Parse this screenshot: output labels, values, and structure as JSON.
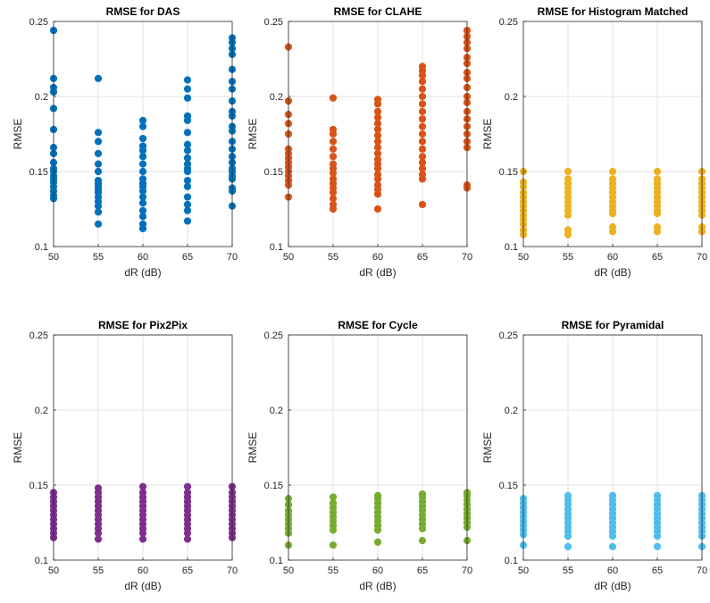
{
  "chart_data": [
    {
      "type": "scatter",
      "title": "RMSE for DAS",
      "xlabel": "dR (dB)",
      "ylabel": "RMSE",
      "xlim": [
        50,
        70
      ],
      "ylim": [
        0.1,
        0.25
      ],
      "xticks": [
        "50",
        "55",
        "60",
        "65",
        "70"
      ],
      "yticks": [
        "0.1",
        "0.15",
        "0.2",
        "0.25"
      ],
      "grid": true,
      "color": "#0072BD",
      "series": [
        {
          "x": 50,
          "y": [
            0.244,
            0.212,
            0.206,
            0.203,
            0.192,
            0.178,
            0.166,
            0.162,
            0.156,
            0.152,
            0.15,
            0.147,
            0.145,
            0.143,
            0.14,
            0.137,
            0.134,
            0.132
          ]
        },
        {
          "x": 55,
          "y": [
            0.212,
            0.176,
            0.17,
            0.162,
            0.155,
            0.15,
            0.144,
            0.142,
            0.14,
            0.138,
            0.136,
            0.133,
            0.13,
            0.127,
            0.123,
            0.115
          ]
        },
        {
          "x": 60,
          "y": [
            0.184,
            0.18,
            0.172,
            0.167,
            0.164,
            0.16,
            0.155,
            0.15,
            0.145,
            0.142,
            0.14,
            0.137,
            0.133,
            0.129,
            0.124,
            0.12,
            0.115,
            0.112
          ]
        },
        {
          "x": 65,
          "y": [
            0.211,
            0.205,
            0.199,
            0.187,
            0.184,
            0.176,
            0.168,
            0.164,
            0.159,
            0.155,
            0.152,
            0.15,
            0.144,
            0.14,
            0.133,
            0.128,
            0.124,
            0.117
          ]
        },
        {
          "x": 70,
          "y": [
            0.239,
            0.236,
            0.232,
            0.228,
            0.218,
            0.21,
            0.205,
            0.197,
            0.19,
            0.187,
            0.18,
            0.177,
            0.17,
            0.165,
            0.16,
            0.156,
            0.152,
            0.15,
            0.147,
            0.145,
            0.139,
            0.137,
            0.127
          ]
        }
      ]
    },
    {
      "type": "scatter",
      "title": "RMSE for CLAHE",
      "xlabel": "dR (dB)",
      "ylabel": "RMSE",
      "xlim": [
        50,
        70
      ],
      "ylim": [
        0.1,
        0.25
      ],
      "xticks": [
        "50",
        "55",
        "60",
        "65",
        "70"
      ],
      "yticks": [
        "0.1",
        "0.15",
        "0.2",
        "0.25"
      ],
      "grid": true,
      "color": "#D95319",
      "series": [
        {
          "x": 50,
          "y": [
            0.233,
            0.197,
            0.188,
            0.182,
            0.175,
            0.165,
            0.162,
            0.159,
            0.156,
            0.153,
            0.15,
            0.147,
            0.144,
            0.141,
            0.133
          ]
        },
        {
          "x": 55,
          "y": [
            0.199,
            0.178,
            0.175,
            0.17,
            0.165,
            0.16,
            0.155,
            0.152,
            0.149,
            0.145,
            0.142,
            0.139,
            0.136,
            0.132,
            0.128,
            0.125
          ]
        },
        {
          "x": 60,
          "y": [
            0.198,
            0.195,
            0.19,
            0.186,
            0.182,
            0.178,
            0.174,
            0.17,
            0.166,
            0.162,
            0.158,
            0.155,
            0.152,
            0.148,
            0.145,
            0.141,
            0.138,
            0.135,
            0.125
          ]
        },
        {
          "x": 65,
          "y": [
            0.22,
            0.217,
            0.214,
            0.21,
            0.205,
            0.2,
            0.195,
            0.19,
            0.185,
            0.18,
            0.175,
            0.17,
            0.165,
            0.16,
            0.156,
            0.152,
            0.148,
            0.145,
            0.128
          ]
        },
        {
          "x": 70,
          "y": [
            0.244,
            0.24,
            0.236,
            0.232,
            0.226,
            0.222,
            0.216,
            0.212,
            0.206,
            0.2,
            0.196,
            0.19,
            0.185,
            0.18,
            0.175,
            0.17,
            0.166,
            0.141,
            0.139
          ]
        }
      ]
    },
    {
      "type": "scatter",
      "title": "RMSE for Histogram Matched",
      "xlabel": "dR (dB)",
      "ylabel": "RMSE",
      "xlim": [
        50,
        70
      ],
      "ylim": [
        0.1,
        0.25
      ],
      "xticks": [
        "50",
        "55",
        "60",
        "65",
        "70"
      ],
      "yticks": [
        "0.1",
        "0.15",
        "0.2",
        "0.25"
      ],
      "grid": true,
      "color": "#EDB120",
      "series": [
        {
          "x": 50,
          "y": [
            0.15,
            0.143,
            0.14,
            0.136,
            0.133,
            0.13,
            0.127,
            0.124,
            0.121,
            0.118,
            0.115,
            0.111,
            0.108
          ]
        },
        {
          "x": 55,
          "y": [
            0.15,
            0.145,
            0.142,
            0.139,
            0.136,
            0.133,
            0.13,
            0.127,
            0.124,
            0.121,
            0.111,
            0.108
          ]
        },
        {
          "x": 60,
          "y": [
            0.15,
            0.145,
            0.142,
            0.139,
            0.136,
            0.133,
            0.13,
            0.127,
            0.124,
            0.122,
            0.113,
            0.11
          ]
        },
        {
          "x": 65,
          "y": [
            0.15,
            0.145,
            0.142,
            0.139,
            0.136,
            0.133,
            0.13,
            0.127,
            0.124,
            0.122,
            0.113,
            0.11
          ]
        },
        {
          "x": 70,
          "y": [
            0.15,
            0.145,
            0.142,
            0.139,
            0.136,
            0.133,
            0.13,
            0.127,
            0.124,
            0.121,
            0.113,
            0.11
          ]
        }
      ]
    },
    {
      "type": "scatter",
      "title": "RMSE for Pix2Pix",
      "xlabel": "dR (dB)",
      "ylabel": "RMSE",
      "xlim": [
        50,
        70
      ],
      "ylim": [
        0.1,
        0.25
      ],
      "xticks": [
        "50",
        "55",
        "60",
        "65",
        "70"
      ],
      "yticks": [
        "0.1",
        "0.15",
        "0.2",
        "0.25"
      ],
      "grid": true,
      "color": "#7E2F8E",
      "series": [
        {
          "x": 50,
          "y": [
            0.145,
            0.142,
            0.139,
            0.136,
            0.133,
            0.13,
            0.127,
            0.124,
            0.121,
            0.118,
            0.115
          ]
        },
        {
          "x": 55,
          "y": [
            0.148,
            0.145,
            0.142,
            0.139,
            0.136,
            0.133,
            0.13,
            0.127,
            0.124,
            0.121,
            0.118,
            0.114
          ]
        },
        {
          "x": 60,
          "y": [
            0.149,
            0.145,
            0.142,
            0.139,
            0.136,
            0.133,
            0.13,
            0.127,
            0.124,
            0.121,
            0.118,
            0.114
          ]
        },
        {
          "x": 65,
          "y": [
            0.149,
            0.145,
            0.142,
            0.139,
            0.136,
            0.133,
            0.13,
            0.127,
            0.124,
            0.121,
            0.118,
            0.114
          ]
        },
        {
          "x": 70,
          "y": [
            0.149,
            0.145,
            0.142,
            0.139,
            0.136,
            0.133,
            0.13,
            0.127,
            0.124,
            0.121,
            0.118,
            0.115
          ]
        }
      ]
    },
    {
      "type": "scatter",
      "title": "RMSE for Cycle",
      "xlabel": "dR (dB)",
      "ylabel": "RMSE",
      "xlim": [
        50,
        70
      ],
      "ylim": [
        0.1,
        0.25
      ],
      "xticks": [
        "50",
        "55",
        "60",
        "65",
        "70"
      ],
      "yticks": [
        "0.1",
        "0.15",
        "0.2",
        "0.25"
      ],
      "grid": true,
      "color": "#77AC30",
      "series": [
        {
          "x": 50,
          "y": [
            0.141,
            0.137,
            0.133,
            0.13,
            0.127,
            0.124,
            0.121,
            0.118,
            0.11
          ]
        },
        {
          "x": 55,
          "y": [
            0.142,
            0.138,
            0.135,
            0.132,
            0.129,
            0.126,
            0.123,
            0.12,
            0.11
          ]
        },
        {
          "x": 60,
          "y": [
            0.143,
            0.141,
            0.138,
            0.135,
            0.132,
            0.129,
            0.126,
            0.123,
            0.12,
            0.112
          ]
        },
        {
          "x": 65,
          "y": [
            0.144,
            0.142,
            0.139,
            0.136,
            0.133,
            0.13,
            0.127,
            0.124,
            0.121,
            0.113
          ]
        },
        {
          "x": 70,
          "y": [
            0.145,
            0.143,
            0.14,
            0.137,
            0.134,
            0.131,
            0.128,
            0.125,
            0.122,
            0.113
          ]
        }
      ]
    },
    {
      "type": "scatter",
      "title": "RMSE for Pyramidal",
      "xlabel": "dR (dB)",
      "ylabel": "RMSE",
      "xlim": [
        50,
        70
      ],
      "ylim": [
        0.1,
        0.25
      ],
      "xticks": [
        "50",
        "55",
        "60",
        "65",
        "70"
      ],
      "yticks": [
        "0.1",
        "0.15",
        "0.2",
        "0.25"
      ],
      "grid": true,
      "color": "#4DBEEE",
      "series": [
        {
          "x": 50,
          "y": [
            0.141,
            0.138,
            0.135,
            0.132,
            0.129,
            0.126,
            0.123,
            0.12,
            0.117,
            0.11
          ]
        },
        {
          "x": 55,
          "y": [
            0.143,
            0.14,
            0.137,
            0.134,
            0.131,
            0.128,
            0.125,
            0.122,
            0.119,
            0.116,
            0.109
          ]
        },
        {
          "x": 60,
          "y": [
            0.143,
            0.14,
            0.137,
            0.134,
            0.131,
            0.128,
            0.125,
            0.122,
            0.119,
            0.116,
            0.109
          ]
        },
        {
          "x": 65,
          "y": [
            0.143,
            0.14,
            0.137,
            0.134,
            0.131,
            0.128,
            0.125,
            0.122,
            0.119,
            0.116,
            0.109
          ]
        },
        {
          "x": 70,
          "y": [
            0.143,
            0.14,
            0.137,
            0.134,
            0.131,
            0.128,
            0.125,
            0.122,
            0.119,
            0.116,
            0.109
          ]
        }
      ]
    }
  ]
}
